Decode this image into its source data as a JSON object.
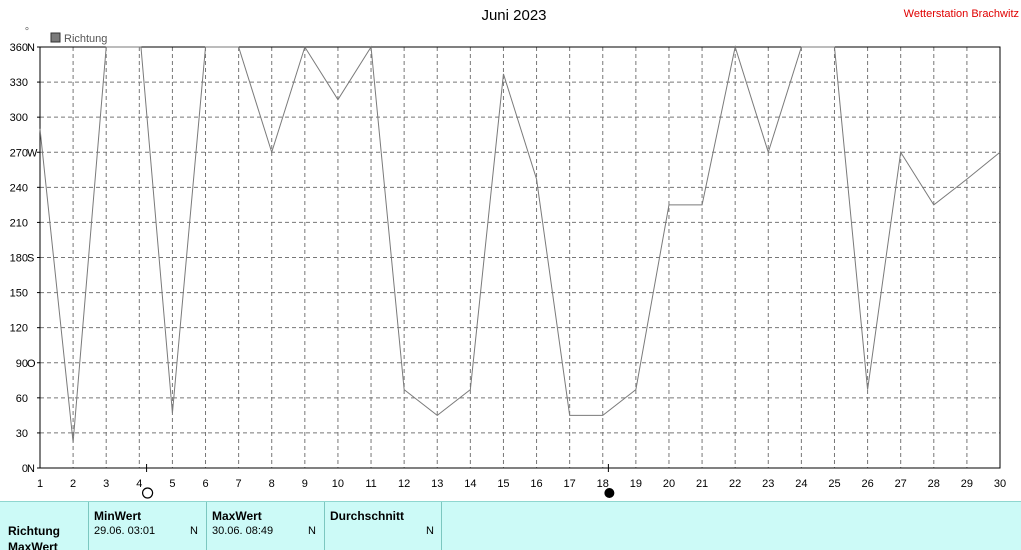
{
  "chart_data": {
    "type": "line",
    "title": "Juni 2023",
    "station": "Wetterstation Brachwitz",
    "ylabel": "°",
    "xlabel": "",
    "legend": {
      "label": "Richtung",
      "placement": "top-left"
    },
    "ylim": [
      0,
      360
    ],
    "xlim": [
      1,
      30
    ],
    "grid": true,
    "x_ticks": [
      "1",
      "2",
      "3",
      "4",
      "5",
      "6",
      "7",
      "8",
      "9",
      "10",
      "11",
      "12",
      "13",
      "14",
      "15",
      "16",
      "17",
      "18",
      "19",
      "20",
      "21",
      "22",
      "23",
      "24",
      "25",
      "26",
      "27",
      "28",
      "29",
      "30"
    ],
    "y_ticks": [
      {
        "value": 0,
        "label": "0",
        "dir": "N"
      },
      {
        "value": 30,
        "label": "30",
        "dir": ""
      },
      {
        "value": 60,
        "label": "60",
        "dir": ""
      },
      {
        "value": 90,
        "label": "90",
        "dir": "O"
      },
      {
        "value": 120,
        "label": "120",
        "dir": ""
      },
      {
        "value": 150,
        "label": "150",
        "dir": ""
      },
      {
        "value": 180,
        "label": "180",
        "dir": "S"
      },
      {
        "value": 210,
        "label": "210",
        "dir": ""
      },
      {
        "value": 240,
        "label": "240",
        "dir": ""
      },
      {
        "value": 270,
        "label": "270",
        "dir": "W"
      },
      {
        "value": 300,
        "label": "300",
        "dir": ""
      },
      {
        "value": 330,
        "label": "330",
        "dir": ""
      },
      {
        "value": 360,
        "label": "360",
        "dir": "N"
      }
    ],
    "series": [
      {
        "name": "Richtung",
        "color": "#7a7a7a",
        "points": [
          [
            1,
            290
          ],
          [
            2,
            22
          ],
          [
            3,
            360
          ],
          [
            4.05,
            360
          ],
          [
            5,
            47
          ],
          [
            6,
            360
          ],
          [
            7,
            360
          ],
          [
            8,
            270
          ],
          [
            9,
            360
          ],
          [
            10,
            315
          ],
          [
            11,
            360
          ],
          [
            12,
            67
          ],
          [
            13,
            45
          ],
          [
            14,
            67
          ],
          [
            15,
            337
          ],
          [
            16,
            247
          ],
          [
            17,
            45
          ],
          [
            18,
            45
          ],
          [
            19,
            67
          ],
          [
            20,
            225
          ],
          [
            21,
            225
          ],
          [
            22,
            360
          ],
          [
            23,
            270
          ],
          [
            24,
            360
          ],
          [
            25,
            360
          ],
          [
            26,
            67
          ],
          [
            27,
            270
          ],
          [
            28,
            225
          ],
          [
            29,
            247
          ],
          [
            30,
            270
          ]
        ]
      }
    ],
    "moon_phases": [
      {
        "x": 4.25,
        "phase": "full"
      },
      {
        "x": 18.2,
        "phase": "new"
      }
    ]
  },
  "stats": {
    "columns": [
      {
        "title": "MinWert",
        "date": "29.06.  03:01",
        "value": "N"
      },
      {
        "title": "MaxWert",
        "date": "30.06.  08:49",
        "value": "N"
      },
      {
        "title": "Durchschnitt",
        "date": "",
        "value": "N"
      }
    ],
    "row_labels": [
      "Richtung",
      "MaxWert"
    ]
  }
}
